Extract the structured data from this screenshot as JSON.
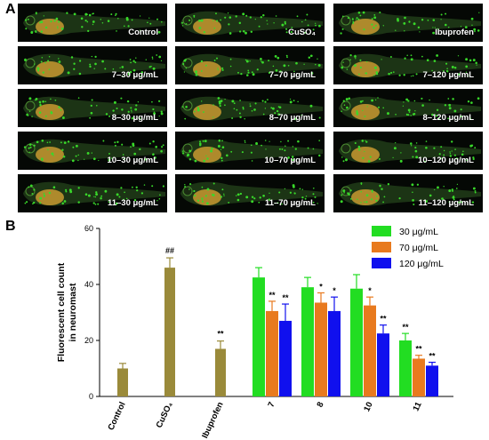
{
  "panel_a": {
    "letter": "A",
    "images": [
      {
        "label": "Control"
      },
      {
        "label": "CuSO₄"
      },
      {
        "label": "Ibuprofen"
      },
      {
        "label": "7–30 μg/mL"
      },
      {
        "label": "7–70 μg/mL"
      },
      {
        "label": "7–120 μg/mL"
      },
      {
        "label": "8–30 μg/mL"
      },
      {
        "label": "8–70 μg/mL"
      },
      {
        "label": "8–120 μg/mL"
      },
      {
        "label": "10–30 μg/mL"
      },
      {
        "label": "10–70 μg/mL"
      },
      {
        "label": "10–120 μg/mL"
      },
      {
        "label": "11–30 μg/mL"
      },
      {
        "label": "11–70 μg/mL"
      },
      {
        "label": "11–120 μg/mL"
      }
    ],
    "colors": {
      "background": "#050805",
      "fluorescence": "#39d82a",
      "tissue": "#c89a30"
    }
  },
  "panel_b": {
    "letter": "B"
  },
  "chart_data": {
    "type": "bar",
    "title": "",
    "xlabel": "",
    "ylabel": "Fluorescent cell count in neuromast",
    "ylabel_lines": [
      "Fluorescent cell count",
      "in neuromast"
    ],
    "ylim": [
      0,
      60
    ],
    "yticks": [
      "0",
      "20",
      "40",
      "60"
    ],
    "legend_position": "top-right",
    "controls": {
      "categories": [
        "Control",
        "CuSO₄",
        "Ibuprofen"
      ],
      "values": [
        10,
        46,
        17
      ],
      "errors": [
        1.8,
        3.5,
        2.8
      ],
      "significance": [
        "",
        "##",
        "**"
      ],
      "color": "#9a8a3a"
    },
    "groups": [
      "7",
      "8",
      "10",
      "11"
    ],
    "series": [
      {
        "name": "30 μg/mL",
        "color": "#22dd22",
        "values": [
          42.5,
          39,
          38.5,
          20
        ],
        "errors": [
          3.5,
          3.5,
          5,
          2.5
        ],
        "significance": [
          "",
          "",
          "",
          "**"
        ]
      },
      {
        "name": "70 μg/mL",
        "color": "#e87a1e",
        "values": [
          30.5,
          33.5,
          32.5,
          13.5
        ],
        "errors": [
          3.5,
          3.5,
          3,
          1.2
        ],
        "significance": [
          "**",
          "*",
          "*",
          "**"
        ]
      },
      {
        "name": "120 μg/mL",
        "color": "#1010ee",
        "values": [
          27,
          30.5,
          22.5,
          11
        ],
        "errors": [
          6,
          5,
          3,
          1.2
        ],
        "significance": [
          "**",
          "*",
          "**",
          "**"
        ]
      }
    ]
  }
}
